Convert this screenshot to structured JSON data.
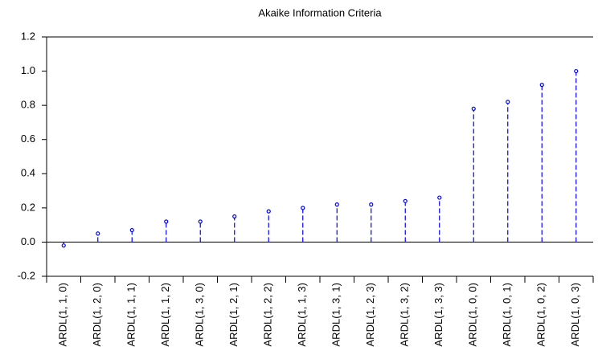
{
  "chart_data": {
    "type": "stem",
    "title": "Akaike Information Criteria",
    "categories": [
      "ARDL(1, 1, 0)",
      "ARDL(1, 2, 0)",
      "ARDL(1, 1, 1)",
      "ARDL(1, 1, 2)",
      "ARDL(1, 3, 0)",
      "ARDL(1, 2, 1)",
      "ARDL(1, 2, 2)",
      "ARDL(1, 1, 3)",
      "ARDL(1, 3, 1)",
      "ARDL(1, 2, 3)",
      "ARDL(1, 3, 2)",
      "ARDL(1, 3, 3)",
      "ARDL(1, 0, 0)",
      "ARDL(1, 0, 1)",
      "ARDL(1, 0, 2)",
      "ARDL(1, 0, 3)"
    ],
    "values": [
      -0.02,
      0.05,
      0.07,
      0.12,
      0.12,
      0.15,
      0.18,
      0.2,
      0.22,
      0.22,
      0.24,
      0.26,
      0.78,
      0.82,
      0.92,
      1.0
    ],
    "color": "#0000ff",
    "ylim": [
      -0.2,
      1.2
    ],
    "yticks": [
      -0.2,
      {
        "value": 0,
        "label": "0.0"
      },
      0.2,
      0.4,
      0.6,
      0.8,
      {
        "value": 1,
        "label": "1.0"
      },
      1.2
    ]
  }
}
